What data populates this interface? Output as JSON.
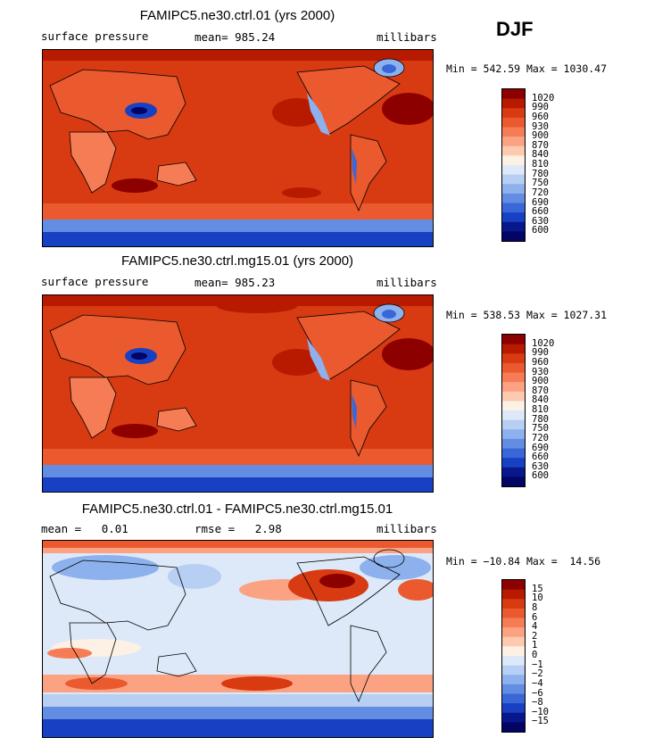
{
  "season": "DJF",
  "chart_data": [
    {
      "type": "heatmap",
      "title": "FAMIPC5.ne30.ctrl.01 (yrs 2000)",
      "left_label": "surface pressure",
      "center_label": "mean= 985.24",
      "units": "millibars",
      "minmax": "Min = 542.59 Max = 1030.47",
      "levels": [
        "1020",
        "990",
        "960",
        "930",
        "900",
        "870",
        "840",
        "810",
        "780",
        "750",
        "720",
        "690",
        "660",
        "630",
        "600"
      ],
      "colors": [
        "#8c0000",
        "#b81a00",
        "#d83a12",
        "#ea5a2e",
        "#f57c55",
        "#fba283",
        "#fdc9af",
        "#fdf0e4",
        "#dde9f8",
        "#b6cff3",
        "#8db1ec",
        "#628de2",
        "#3a67d8",
        "#1840c2",
        "#08188c",
        "#020563"
      ]
    },
    {
      "type": "heatmap",
      "title": "FAMIPC5.ne30.ctrl.mg15.01 (yrs 2000)",
      "left_label": "surface pressure",
      "center_label": "mean= 985.23",
      "units": "millibars",
      "minmax": "Min = 538.53 Max = 1027.31",
      "levels": [
        "1020",
        "990",
        "960",
        "930",
        "900",
        "870",
        "840",
        "810",
        "780",
        "750",
        "720",
        "690",
        "660",
        "630",
        "600"
      ],
      "colors": [
        "#8c0000",
        "#b81a00",
        "#d83a12",
        "#ea5a2e",
        "#f57c55",
        "#fba283",
        "#fdc9af",
        "#fdf0e4",
        "#dde9f8",
        "#b6cff3",
        "#8db1ec",
        "#628de2",
        "#3a67d8",
        "#1840c2",
        "#08188c",
        "#020563"
      ]
    },
    {
      "type": "heatmap",
      "title": "FAMIPC5.ne30.ctrl.01 - FAMIPC5.ne30.ctrl.mg15.01",
      "left_label": "mean =   0.01",
      "center_label": "rmse =   2.98",
      "units": "millibars",
      "minmax": "Min = −10.84 Max =  14.56",
      "levels": [
        "15",
        "10",
        "8",
        "6",
        "4",
        "2",
        "1",
        "0",
        "−1",
        "−2",
        "−4",
        "−6",
        "−8",
        "−10",
        "−15"
      ],
      "colors": [
        "#8c0000",
        "#b81a00",
        "#d83a12",
        "#ea5a2e",
        "#f57c55",
        "#fba283",
        "#fdc9af",
        "#fdf0e4",
        "#dde9f8",
        "#b6cff3",
        "#8db1ec",
        "#628de2",
        "#3a67d8",
        "#1840c2",
        "#08188c",
        "#020563"
      ]
    }
  ]
}
